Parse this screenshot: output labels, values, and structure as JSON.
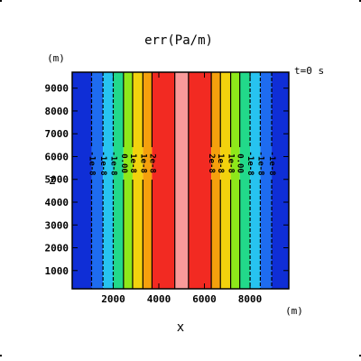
{
  "chart_data": {
    "type": "heatmap",
    "title": "err(Pa/m)",
    "xlabel": "x",
    "ylabel": "z",
    "x_unit": "(m)",
    "y_unit": "(m)",
    "time_label": "t=0  s",
    "xlim": [
      200,
      9700
    ],
    "ylim": [
      200,
      9700
    ],
    "xticks": [
      2000,
      4000,
      6000,
      8000
    ],
    "yticks": [
      1000,
      2000,
      3000,
      4000,
      5000,
      6000,
      7000,
      8000,
      9000
    ],
    "bands": [
      {
        "x0": 200,
        "x1": 1050,
        "color": "#0f2ed6"
      },
      {
        "x0": 1050,
        "x1": 1550,
        "color": "#1e6cf0"
      },
      {
        "x0": 1550,
        "x1": 2000,
        "color": "#27c3f0"
      },
      {
        "x0": 2000,
        "x1": 2450,
        "color": "#22d98a"
      },
      {
        "x0": 2450,
        "x1": 2850,
        "color": "#8ee81a"
      },
      {
        "x0": 2850,
        "x1": 3300,
        "color": "#f2d20d"
      },
      {
        "x0": 3300,
        "x1": 3700,
        "color": "#f5a00d"
      },
      {
        "x0": 3700,
        "x1": 4700,
        "color": "#f22a22"
      },
      {
        "x0": 4700,
        "x1": 5300,
        "color": "#f99a9a"
      },
      {
        "x0": 5300,
        "x1": 6300,
        "color": "#f22a22"
      },
      {
        "x0": 6300,
        "x1": 6700,
        "color": "#f5a00d"
      },
      {
        "x0": 6700,
        "x1": 7150,
        "color": "#f2d20d"
      },
      {
        "x0": 7150,
        "x1": 7550,
        "color": "#8ee81a"
      },
      {
        "x0": 7550,
        "x1": 8000,
        "color": "#22d98a"
      },
      {
        "x0": 8000,
        "x1": 8450,
        "color": "#27c3f0"
      },
      {
        "x0": 8450,
        "x1": 8950,
        "color": "#1e6cf0"
      },
      {
        "x0": 8950,
        "x1": 9700,
        "color": "#0f2ed6"
      }
    ],
    "contours": [
      {
        "x": 1050,
        "label": "-1e-8",
        "dashed": true
      },
      {
        "x": 1550,
        "label": "-1e-8",
        "dashed": true
      },
      {
        "x": 2000,
        "label": "-1e-8",
        "dashed": true
      },
      {
        "x": 2450,
        "label": "0.00",
        "dashed": false
      },
      {
        "x": 2850,
        "label": "1e-8",
        "dashed": false
      },
      {
        "x": 3300,
        "label": "1e-8",
        "dashed": false
      },
      {
        "x": 3700,
        "label": "2e-8",
        "dashed": false
      },
      {
        "x": 4700,
        "label": "",
        "dashed": false
      },
      {
        "x": 5300,
        "label": "",
        "dashed": false
      },
      {
        "x": 6300,
        "label": "2e-8",
        "dashed": false
      },
      {
        "x": 6700,
        "label": "1e-8",
        "dashed": false
      },
      {
        "x": 7150,
        "label": "1e-8",
        "dashed": false
      },
      {
        "x": 7550,
        "label": "0.00",
        "dashed": false
      },
      {
        "x": 8000,
        "label": "-1e-8",
        "dashed": true
      },
      {
        "x": 8450,
        "label": "-1e-8",
        "dashed": true
      },
      {
        "x": 8950,
        "label": "-1e-8",
        "dashed": true
      }
    ],
    "contour_label_z": 5700,
    "grid": false,
    "legend": "none"
  }
}
